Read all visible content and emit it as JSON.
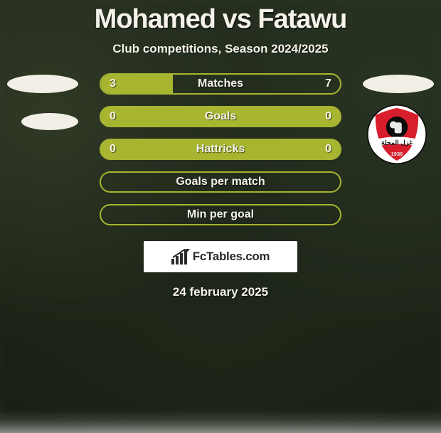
{
  "title": "Mohamed vs Fatawu",
  "subtitle": "Club competitions, Season 2024/2025",
  "date": "24 february 2025",
  "brand": "FcTables.com",
  "colors": {
    "bar_fill": "#a7b531",
    "bar_border": "#a7b531",
    "text": "#f5f3ea",
    "badge_bg": "#f2f0e6"
  },
  "rows": [
    {
      "label": "Matches",
      "left": "3",
      "right": "7",
      "left_pct": 30,
      "right_pct": 70,
      "show_values": true,
      "filled": true
    },
    {
      "label": "Goals",
      "left": "0",
      "right": "0",
      "left_pct": 0,
      "right_pct": 0,
      "show_values": true,
      "filled": true
    },
    {
      "label": "Hattricks",
      "left": "0",
      "right": "0",
      "left_pct": 0,
      "right_pct": 0,
      "show_values": true,
      "filled": true
    },
    {
      "label": "Goals per match",
      "left": "",
      "right": "",
      "left_pct": 0,
      "right_pct": 0,
      "show_values": false,
      "filled": false
    },
    {
      "label": "Min per goal",
      "left": "",
      "right": "",
      "left_pct": 0,
      "right_pct": 0,
      "show_values": false,
      "filled": false
    }
  ],
  "club_logo": {
    "outer_fill": "#ffffff",
    "outer_stroke": "#0c0c0c",
    "shield_fill": "#d81e2c",
    "band_fill": "#ffffff",
    "band_text": "غزل المحلة",
    "band_text_color": "#111111",
    "inner_circle_fill": "#0c0c0c",
    "year": "1936",
    "year_color": "#e9e9e9"
  }
}
